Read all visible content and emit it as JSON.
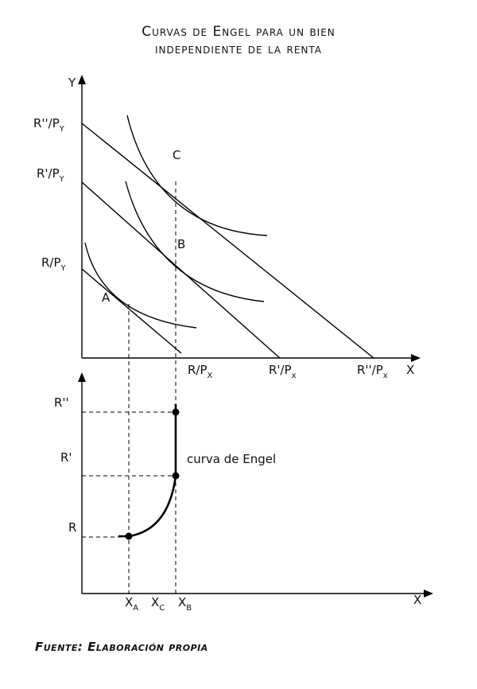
{
  "title": {
    "line1": "Curvas de Engel para un bien",
    "line2": "independiente de la renta"
  },
  "top_graph": {
    "y_axis_label": "Y",
    "x_axis_label": "X",
    "y_intercepts": [
      {
        "main": "R''/P",
        "sub": "Y"
      },
      {
        "main": "R'/P",
        "sub": "Y"
      },
      {
        "main": "R/P",
        "sub": "Y"
      }
    ],
    "x_intercepts": [
      {
        "main": "R/P",
        "sub": "X"
      },
      {
        "main": "R'/P",
        "sub": "x"
      },
      {
        "main": "R''/P",
        "sub": "x"
      }
    ],
    "points": [
      "A",
      "B",
      "C"
    ]
  },
  "bottom_graph": {
    "x_axis_label": "X",
    "y_levels": [
      "R''",
      "R'",
      "R"
    ],
    "x_ticks": [
      {
        "main": "X",
        "sub": "A"
      },
      {
        "main": "X",
        "sub": "C"
      },
      {
        "main": "X",
        "sub": "B"
      }
    ],
    "curve_label": "curva de Engel"
  },
  "source": "Fuente: Elaboración propia"
}
